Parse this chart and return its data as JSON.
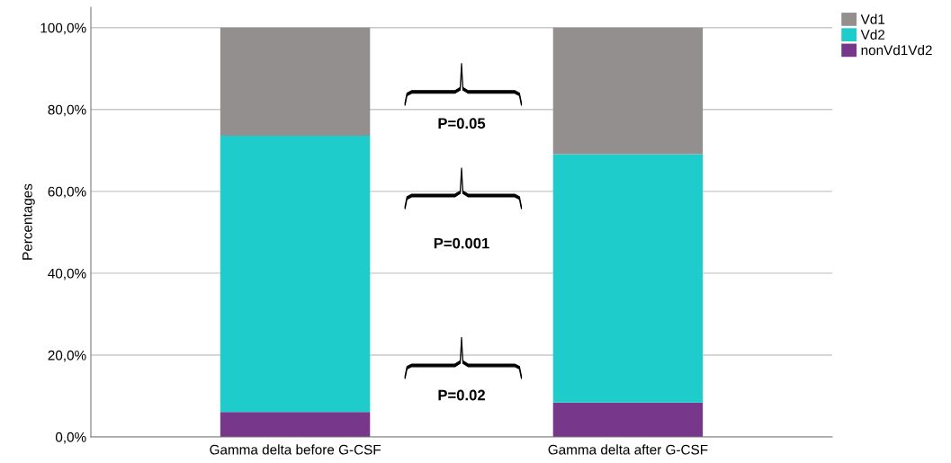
{
  "chart_data": {
    "type": "bar",
    "stacked": true,
    "ylabel": "Percentages",
    "categories": [
      "Gamma delta before G-CSF",
      "Gamma delta after G-CSF"
    ],
    "series": [
      {
        "name": "nonVd1Vd2",
        "color": "#77378b",
        "values": [
          6.1,
          8.4
        ]
      },
      {
        "name": "Vd2",
        "color": "#1fcccc",
        "values": [
          67.5,
          60.7
        ]
      },
      {
        "name": "Vd1",
        "color": "#948f8f",
        "values": [
          26.4,
          30.9
        ]
      }
    ],
    "ylim": [
      0,
      105
    ],
    "yticks": [
      {
        "value": 0,
        "label": "0,0%"
      },
      {
        "value": 20,
        "label": "20,0%"
      },
      {
        "value": 40,
        "label": "40,0%"
      },
      {
        "value": 60,
        "label": "60,0%"
      },
      {
        "value": 80,
        "label": "80,0%"
      },
      {
        "value": 100,
        "label": "100,0%"
      }
    ],
    "grid": "y",
    "legend": "top right",
    "annotations": [
      "P=0.02",
      "P=0.001",
      "P=0.05"
    ]
  }
}
